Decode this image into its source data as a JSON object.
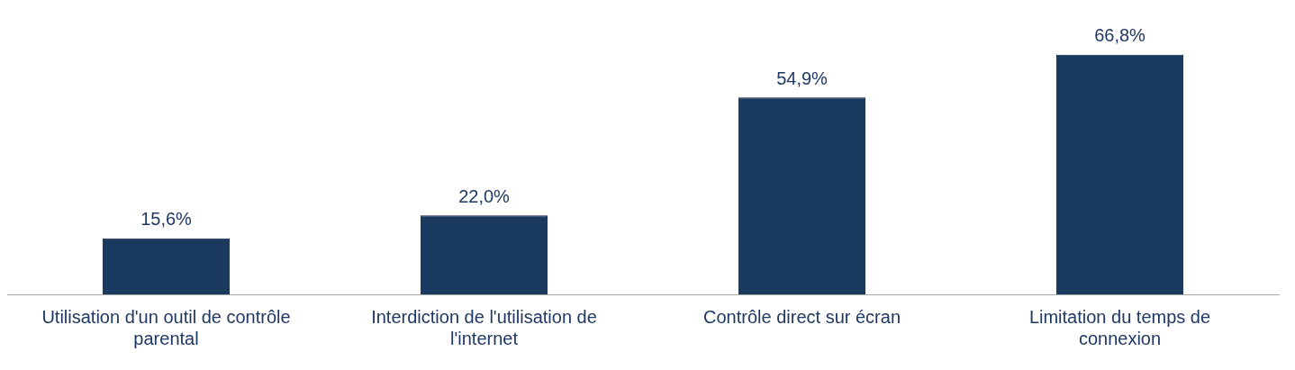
{
  "chart_data": {
    "type": "bar",
    "categories": [
      "Utilisation d'un outil de contrôle parental",
      "Interdiction de l'utilisation de l'internet",
      "Contrôle direct sur écran",
      "Limitation du temps de connexion"
    ],
    "values": [
      15.6,
      22.0,
      54.9,
      66.8
    ],
    "value_labels": [
      "15,6%",
      "22,0%",
      "54,9%",
      "66,8%"
    ],
    "color": "#1b3a5f",
    "grid": false,
    "legend": false
  }
}
